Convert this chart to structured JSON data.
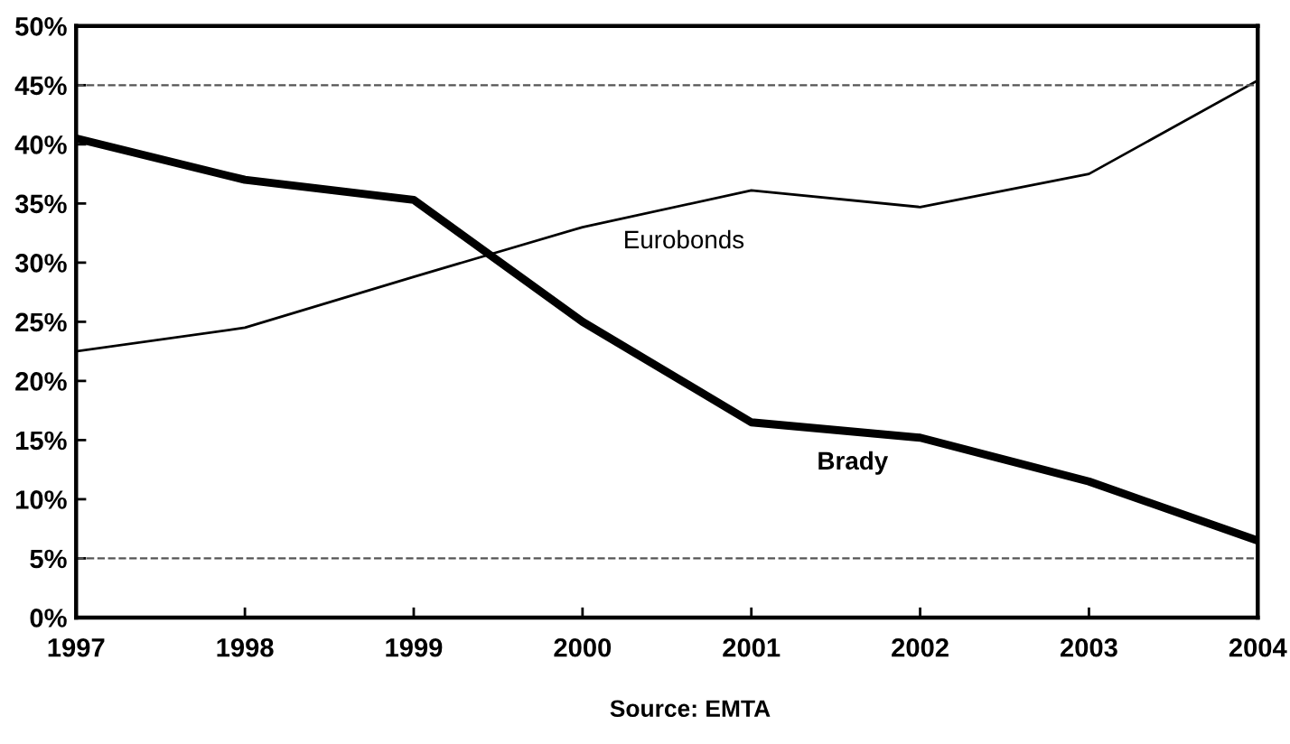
{
  "chart_data": {
    "type": "line",
    "x": [
      1997,
      1998,
      1999,
      2000,
      2001,
      2002,
      2003,
      2004
    ],
    "xlim": [
      1997,
      2004
    ],
    "xticks": [
      1997,
      1998,
      1999,
      2000,
      2001,
      2002,
      2003,
      2004
    ],
    "ylim": [
      0,
      50
    ],
    "yticks": [
      {
        "value": 0,
        "label": "0%"
      },
      {
        "value": 5,
        "label": "5%"
      },
      {
        "value": 10,
        "label": "10%"
      },
      {
        "value": 15,
        "label": "15%"
      },
      {
        "value": 20,
        "label": "20%"
      },
      {
        "value": 25,
        "label": "25%"
      },
      {
        "value": 30,
        "label": "30%"
      },
      {
        "value": 35,
        "label": "35%"
      },
      {
        "value": 40,
        "label": "40%"
      },
      {
        "value": 45,
        "label": "45%"
      },
      {
        "value": 50,
        "label": "50%"
      }
    ],
    "series": [
      {
        "name": "Brady",
        "color": "#000000",
        "values": [
          40.5,
          37,
          35.3,
          25,
          16.5,
          15.2,
          11.5,
          6.5
        ]
      },
      {
        "name": "Eurobonds",
        "color": "#000000",
        "values": [
          22.5,
          24.5,
          28.8,
          33,
          36.1,
          34.7,
          37.5,
          45.4
        ]
      }
    ],
    "ref_lines": [
      {
        "axis": "y",
        "value": 5,
        "color": "#555555",
        "line_style": "dashed"
      },
      {
        "axis": "y",
        "value": 45,
        "color": "#555555",
        "line_style": "dashed"
      }
    ],
    "annotations": [
      "Source: EMTA"
    ],
    "grid": false,
    "legend": false,
    "marker": "none",
    "line_style": "solid"
  }
}
